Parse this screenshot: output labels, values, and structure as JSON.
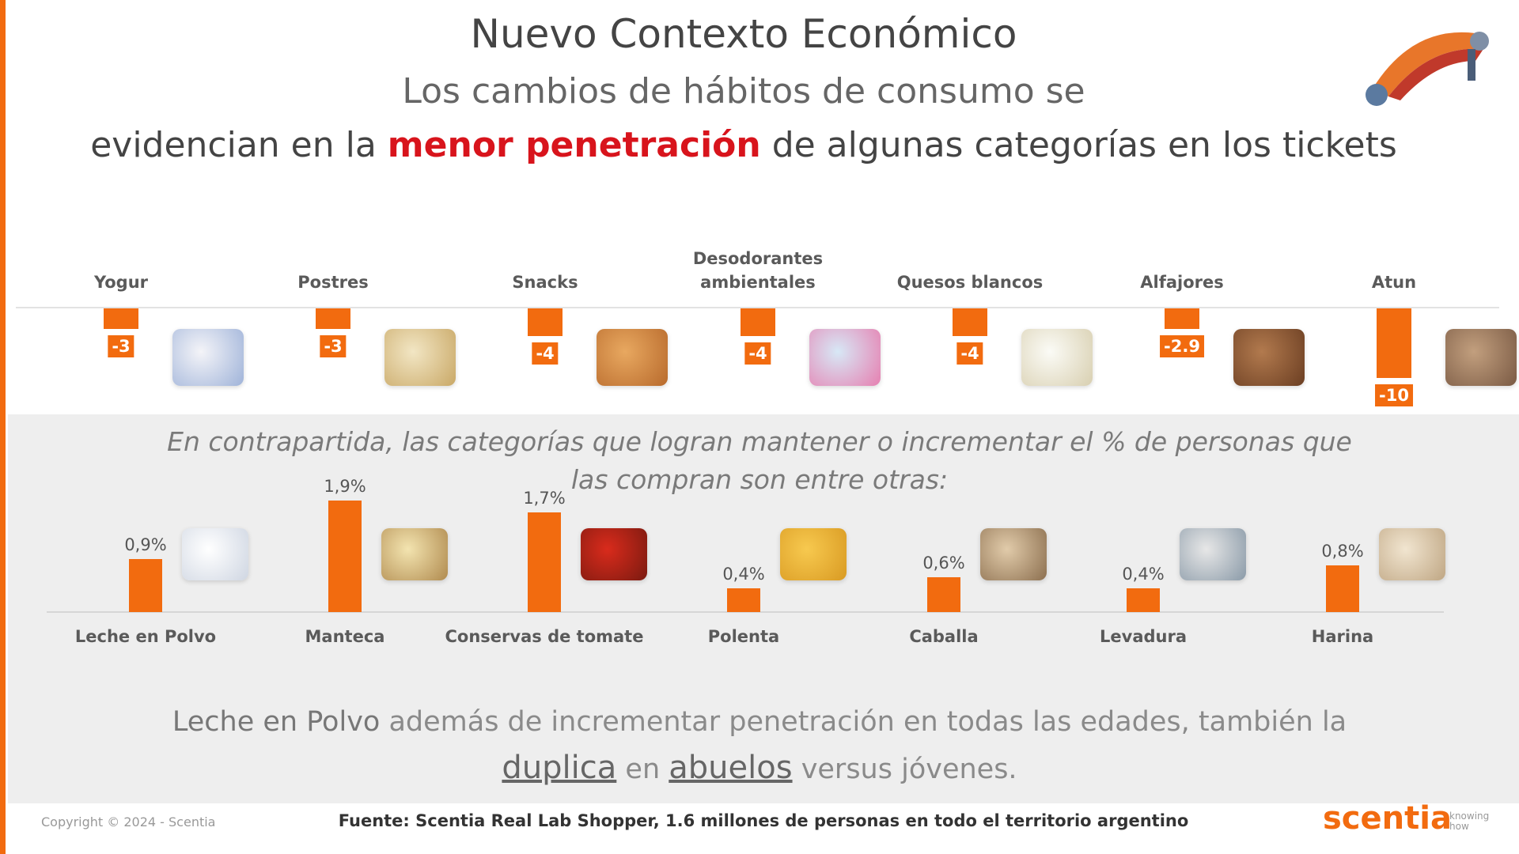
{
  "header": {
    "title": "Nuevo Contexto Económico",
    "subtitle": "Los cambios de hábitos de consumo se",
    "subtitle_line2": [
      "evidencian en la ",
      "menor penetración",
      " de algunas categorías en los tickets"
    ]
  },
  "chart_data": [
    {
      "type": "bar",
      "color": "#f26b0f",
      "categories": [
        "Yogur",
        "Postres",
        "Snacks",
        "Desodorantes ambientales",
        "Quesos blancos",
        "Alfajores",
        "Atun"
      ],
      "values": [
        -3,
        -3,
        -4,
        -4,
        -4,
        -2.9,
        -10
      ],
      "ylim": [
        -10,
        0
      ]
    },
    {
      "type": "bar",
      "color": "#f26b0f",
      "title": "En contrapartida, las categorías que logran mantener o incrementar el % de personas que las compran son entre otras:",
      "categories": [
        "Leche en Polvo",
        "Manteca",
        "Conservas de tomate",
        "Polenta",
        "Caballa",
        "Levadura",
        "Harina"
      ],
      "values": [
        0.9,
        1.9,
        1.7,
        0.4,
        0.6,
        0.4,
        0.8
      ],
      "value_labels": [
        "0,9%",
        "1,9%",
        "1,7%",
        "0,4%",
        "0,6%",
        "0,4%",
        "0,8%"
      ],
      "ylim": [
        0,
        2
      ]
    }
  ],
  "note": [
    "Leche en Polvo",
    " además de incrementar penetración en todas las edades,  también la ",
    "duplica",
    " en ",
    "abuelos",
    " versus jóvenes."
  ],
  "footer": {
    "copyright": "Copyright © 2024 - Scentia",
    "source": "Fuente: Scentia Real Lab Shopper, 1.6 millones de personas en todo el territorio argentino",
    "brand": "scentia",
    "tagline": "knowing how"
  }
}
